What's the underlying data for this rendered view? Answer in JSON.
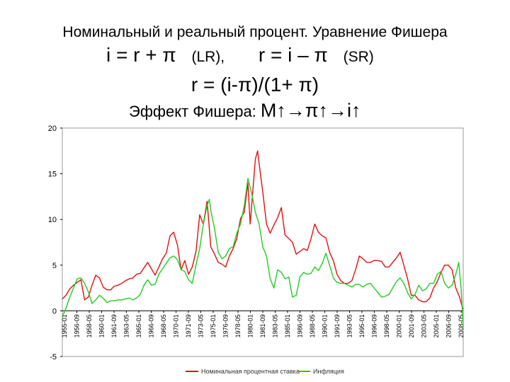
{
  "slide": {
    "title": "Номинальный и реальный процент. Уравнение Фишера",
    "formula_lr": "i = r + π",
    "lr_label": "(LR),",
    "formula_sr": "r = i – π",
    "sr_label": "(SR)",
    "formula_real": "r = (i-π)/(1+ π)",
    "effect_label": "Эффект Фишера:",
    "effect_chain": "M↑→π↑→i↑"
  },
  "chart_data": {
    "type": "line",
    "title": "",
    "xlabel": "",
    "ylabel": "",
    "ylim": [
      -5,
      20
    ],
    "yticks": [
      -5,
      0,
      5,
      10,
      15,
      20
    ],
    "x_ticks": [
      "1955-01",
      "1956-09",
      "1958-05",
      "1960-01",
      "1961-09",
      "1963-05",
      "1965-01",
      "1966-09",
      "1968-05",
      "1970-01",
      "1971-09",
      "1973-05",
      "1975-01",
      "1976-09",
      "1978-05",
      "1980-01",
      "1981-09",
      "1983-05",
      "1985-01",
      "1986-09",
      "1988-05",
      "1990-01",
      "1991-09",
      "1993-05",
      "1995-01",
      "1996-09",
      "1998-05",
      "2000-01",
      "2001-09",
      "2003-05",
      "2005-01",
      "2006-09",
      "2008-05"
    ],
    "xlim": [
      1955.0,
      2009.0
    ],
    "legend": "bottom",
    "series": [
      {
        "name": "Номинальная процентная ставка",
        "color": "#e01010",
        "points": [
          [
            1955.0,
            1.3
          ],
          [
            1955.5,
            1.7
          ],
          [
            1956.0,
            2.4
          ],
          [
            1956.5,
            2.8
          ],
          [
            1957.0,
            3.1
          ],
          [
            1957.5,
            3.4
          ],
          [
            1958.0,
            1.2
          ],
          [
            1958.5,
            1.5
          ],
          [
            1959.0,
            2.8
          ],
          [
            1959.5,
            3.9
          ],
          [
            1960.0,
            3.6
          ],
          [
            1960.5,
            2.6
          ],
          [
            1961.0,
            2.3
          ],
          [
            1961.5,
            2.3
          ],
          [
            1962.0,
            2.7
          ],
          [
            1962.5,
            2.8
          ],
          [
            1963.0,
            3.0
          ],
          [
            1963.5,
            3.3
          ],
          [
            1964.0,
            3.5
          ],
          [
            1964.5,
            3.6
          ],
          [
            1965.0,
            4.0
          ],
          [
            1965.5,
            4.1
          ],
          [
            1966.0,
            4.7
          ],
          [
            1966.5,
            5.3
          ],
          [
            1967.0,
            4.6
          ],
          [
            1967.5,
            3.9
          ],
          [
            1968.0,
            4.8
          ],
          [
            1968.5,
            5.7
          ],
          [
            1969.0,
            6.3
          ],
          [
            1969.5,
            8.2
          ],
          [
            1970.0,
            8.6
          ],
          [
            1970.5,
            7.2
          ],
          [
            1971.0,
            4.5
          ],
          [
            1971.5,
            5.5
          ],
          [
            1972.0,
            4.0
          ],
          [
            1972.5,
            4.8
          ],
          [
            1973.0,
            6.5
          ],
          [
            1973.5,
            10.5
          ],
          [
            1974.0,
            9.5
          ],
          [
            1974.5,
            12.0
          ],
          [
            1975.0,
            7.0
          ],
          [
            1975.5,
            6.2
          ],
          [
            1976.0,
            5.3
          ],
          [
            1976.5,
            5.1
          ],
          [
            1977.0,
            4.8
          ],
          [
            1977.5,
            6.0
          ],
          [
            1978.0,
            6.8
          ],
          [
            1978.5,
            7.9
          ],
          [
            1979.0,
            10.1
          ],
          [
            1979.5,
            10.8
          ],
          [
            1980.0,
            14.0
          ],
          [
            1980.3,
            9.5
          ],
          [
            1980.6,
            12.5
          ],
          [
            1981.0,
            16.6
          ],
          [
            1981.3,
            17.5
          ],
          [
            1981.6,
            15.5
          ],
          [
            1982.0,
            13.0
          ],
          [
            1982.5,
            9.5
          ],
          [
            1983.0,
            8.5
          ],
          [
            1983.5,
            9.4
          ],
          [
            1984.0,
            10.2
          ],
          [
            1984.5,
            11.3
          ],
          [
            1985.0,
            8.3
          ],
          [
            1985.5,
            7.9
          ],
          [
            1986.0,
            7.5
          ],
          [
            1986.5,
            6.2
          ],
          [
            1987.0,
            6.5
          ],
          [
            1987.5,
            6.8
          ],
          [
            1988.0,
            6.6
          ],
          [
            1988.5,
            7.9
          ],
          [
            1989.0,
            9.5
          ],
          [
            1989.5,
            8.6
          ],
          [
            1990.0,
            8.2
          ],
          [
            1990.5,
            8.0
          ],
          [
            1991.0,
            6.4
          ],
          [
            1991.5,
            5.5
          ],
          [
            1992.0,
            4.0
          ],
          [
            1992.5,
            3.3
          ],
          [
            1993.0,
            3.0
          ],
          [
            1993.5,
            3.0
          ],
          [
            1994.0,
            3.3
          ],
          [
            1994.5,
            4.5
          ],
          [
            1995.0,
            6.0
          ],
          [
            1995.5,
            5.7
          ],
          [
            1996.0,
            5.3
          ],
          [
            1996.5,
            5.3
          ],
          [
            1997.0,
            5.5
          ],
          [
            1997.5,
            5.5
          ],
          [
            1998.0,
            5.4
          ],
          [
            1998.5,
            4.8
          ],
          [
            1999.0,
            4.8
          ],
          [
            1999.5,
            5.3
          ],
          [
            2000.0,
            5.8
          ],
          [
            2000.5,
            6.4
          ],
          [
            2001.0,
            5.0
          ],
          [
            2001.5,
            3.5
          ],
          [
            2002.0,
            1.7
          ],
          [
            2002.5,
            1.7
          ],
          [
            2003.0,
            1.2
          ],
          [
            2003.5,
            1.0
          ],
          [
            2004.0,
            1.0
          ],
          [
            2004.5,
            1.4
          ],
          [
            2005.0,
            2.5
          ],
          [
            2005.5,
            3.2
          ],
          [
            2006.0,
            4.2
          ],
          [
            2006.5,
            5.0
          ],
          [
            2007.0,
            5.0
          ],
          [
            2007.5,
            4.5
          ],
          [
            2008.0,
            2.5
          ],
          [
            2008.5,
            1.5
          ],
          [
            2008.9,
            0.3
          ],
          [
            2009.0,
            0.2
          ]
        ]
      },
      {
        "name": "Инфляция",
        "color": "#22cc22",
        "points": [
          [
            1955.0,
            -0.6
          ],
          [
            1955.5,
            0.3
          ],
          [
            1956.0,
            1.5
          ],
          [
            1956.5,
            2.5
          ],
          [
            1957.0,
            3.5
          ],
          [
            1957.5,
            3.6
          ],
          [
            1958.0,
            3.0
          ],
          [
            1958.5,
            2.1
          ],
          [
            1959.0,
            0.8
          ],
          [
            1959.5,
            1.2
          ],
          [
            1960.0,
            1.7
          ],
          [
            1960.5,
            1.4
          ],
          [
            1961.0,
            0.9
          ],
          [
            1961.5,
            1.1
          ],
          [
            1962.0,
            1.1
          ],
          [
            1962.5,
            1.2
          ],
          [
            1963.0,
            1.2
          ],
          [
            1963.5,
            1.3
          ],
          [
            1964.0,
            1.4
          ],
          [
            1964.5,
            1.2
          ],
          [
            1965.0,
            1.4
          ],
          [
            1965.5,
            1.8
          ],
          [
            1966.0,
            2.8
          ],
          [
            1966.5,
            3.4
          ],
          [
            1967.0,
            2.8
          ],
          [
            1967.5,
            2.9
          ],
          [
            1968.0,
            4.0
          ],
          [
            1968.5,
            4.6
          ],
          [
            1969.0,
            5.2
          ],
          [
            1969.5,
            5.8
          ],
          [
            1970.0,
            6.0
          ],
          [
            1970.5,
            5.6
          ],
          [
            1971.0,
            4.5
          ],
          [
            1971.5,
            4.3
          ],
          [
            1972.0,
            3.4
          ],
          [
            1972.5,
            3.0
          ],
          [
            1973.0,
            5.0
          ],
          [
            1973.5,
            6.8
          ],
          [
            1974.0,
            9.5
          ],
          [
            1974.5,
            11.5
          ],
          [
            1974.8,
            12.2
          ],
          [
            1975.0,
            11.0
          ],
          [
            1975.5,
            9.0
          ],
          [
            1976.0,
            6.4
          ],
          [
            1976.5,
            5.7
          ],
          [
            1977.0,
            6.0
          ],
          [
            1977.5,
            6.8
          ],
          [
            1978.0,
            7.0
          ],
          [
            1978.5,
            8.5
          ],
          [
            1979.0,
            9.5
          ],
          [
            1979.5,
            11.5
          ],
          [
            1980.0,
            14.5
          ],
          [
            1980.3,
            13.5
          ],
          [
            1980.6,
            12.5
          ],
          [
            1981.0,
            10.8
          ],
          [
            1981.5,
            9.5
          ],
          [
            1982.0,
            7.0
          ],
          [
            1982.5,
            6.0
          ],
          [
            1983.0,
            3.5
          ],
          [
            1983.5,
            2.5
          ],
          [
            1984.0,
            4.5
          ],
          [
            1984.5,
            4.2
          ],
          [
            1985.0,
            3.5
          ],
          [
            1985.5,
            3.7
          ],
          [
            1986.0,
            1.5
          ],
          [
            1986.5,
            1.7
          ],
          [
            1987.0,
            3.7
          ],
          [
            1987.5,
            4.2
          ],
          [
            1988.0,
            4.0
          ],
          [
            1988.5,
            4.1
          ],
          [
            1989.0,
            4.8
          ],
          [
            1989.5,
            4.4
          ],
          [
            1990.0,
            5.2
          ],
          [
            1990.5,
            6.3
          ],
          [
            1991.0,
            5.0
          ],
          [
            1991.5,
            3.6
          ],
          [
            1992.0,
            3.1
          ],
          [
            1992.5,
            3.0
          ],
          [
            1993.0,
            3.0
          ],
          [
            1993.5,
            2.8
          ],
          [
            1994.0,
            2.6
          ],
          [
            1994.5,
            2.9
          ],
          [
            1995.0,
            2.9
          ],
          [
            1995.5,
            2.6
          ],
          [
            1996.0,
            2.9
          ],
          [
            1996.5,
            3.0
          ],
          [
            1997.0,
            2.5
          ],
          [
            1997.5,
            2.0
          ],
          [
            1998.0,
            1.5
          ],
          [
            1998.5,
            1.6
          ],
          [
            1999.0,
            1.8
          ],
          [
            1999.5,
            2.5
          ],
          [
            2000.0,
            3.2
          ],
          [
            2000.5,
            3.6
          ],
          [
            2001.0,
            3.0
          ],
          [
            2001.5,
            2.0
          ],
          [
            2002.0,
            1.3
          ],
          [
            2002.5,
            1.8
          ],
          [
            2003.0,
            2.8
          ],
          [
            2003.5,
            2.2
          ],
          [
            2004.0,
            2.4
          ],
          [
            2004.5,
            3.0
          ],
          [
            2005.0,
            3.0
          ],
          [
            2005.5,
            4.0
          ],
          [
            2006.0,
            4.3
          ],
          [
            2006.5,
            3.0
          ],
          [
            2007.0,
            2.5
          ],
          [
            2007.5,
            2.8
          ],
          [
            2008.0,
            4.0
          ],
          [
            2008.4,
            5.3
          ],
          [
            2008.7,
            2.5
          ],
          [
            2009.0,
            -1.8
          ]
        ]
      }
    ]
  }
}
